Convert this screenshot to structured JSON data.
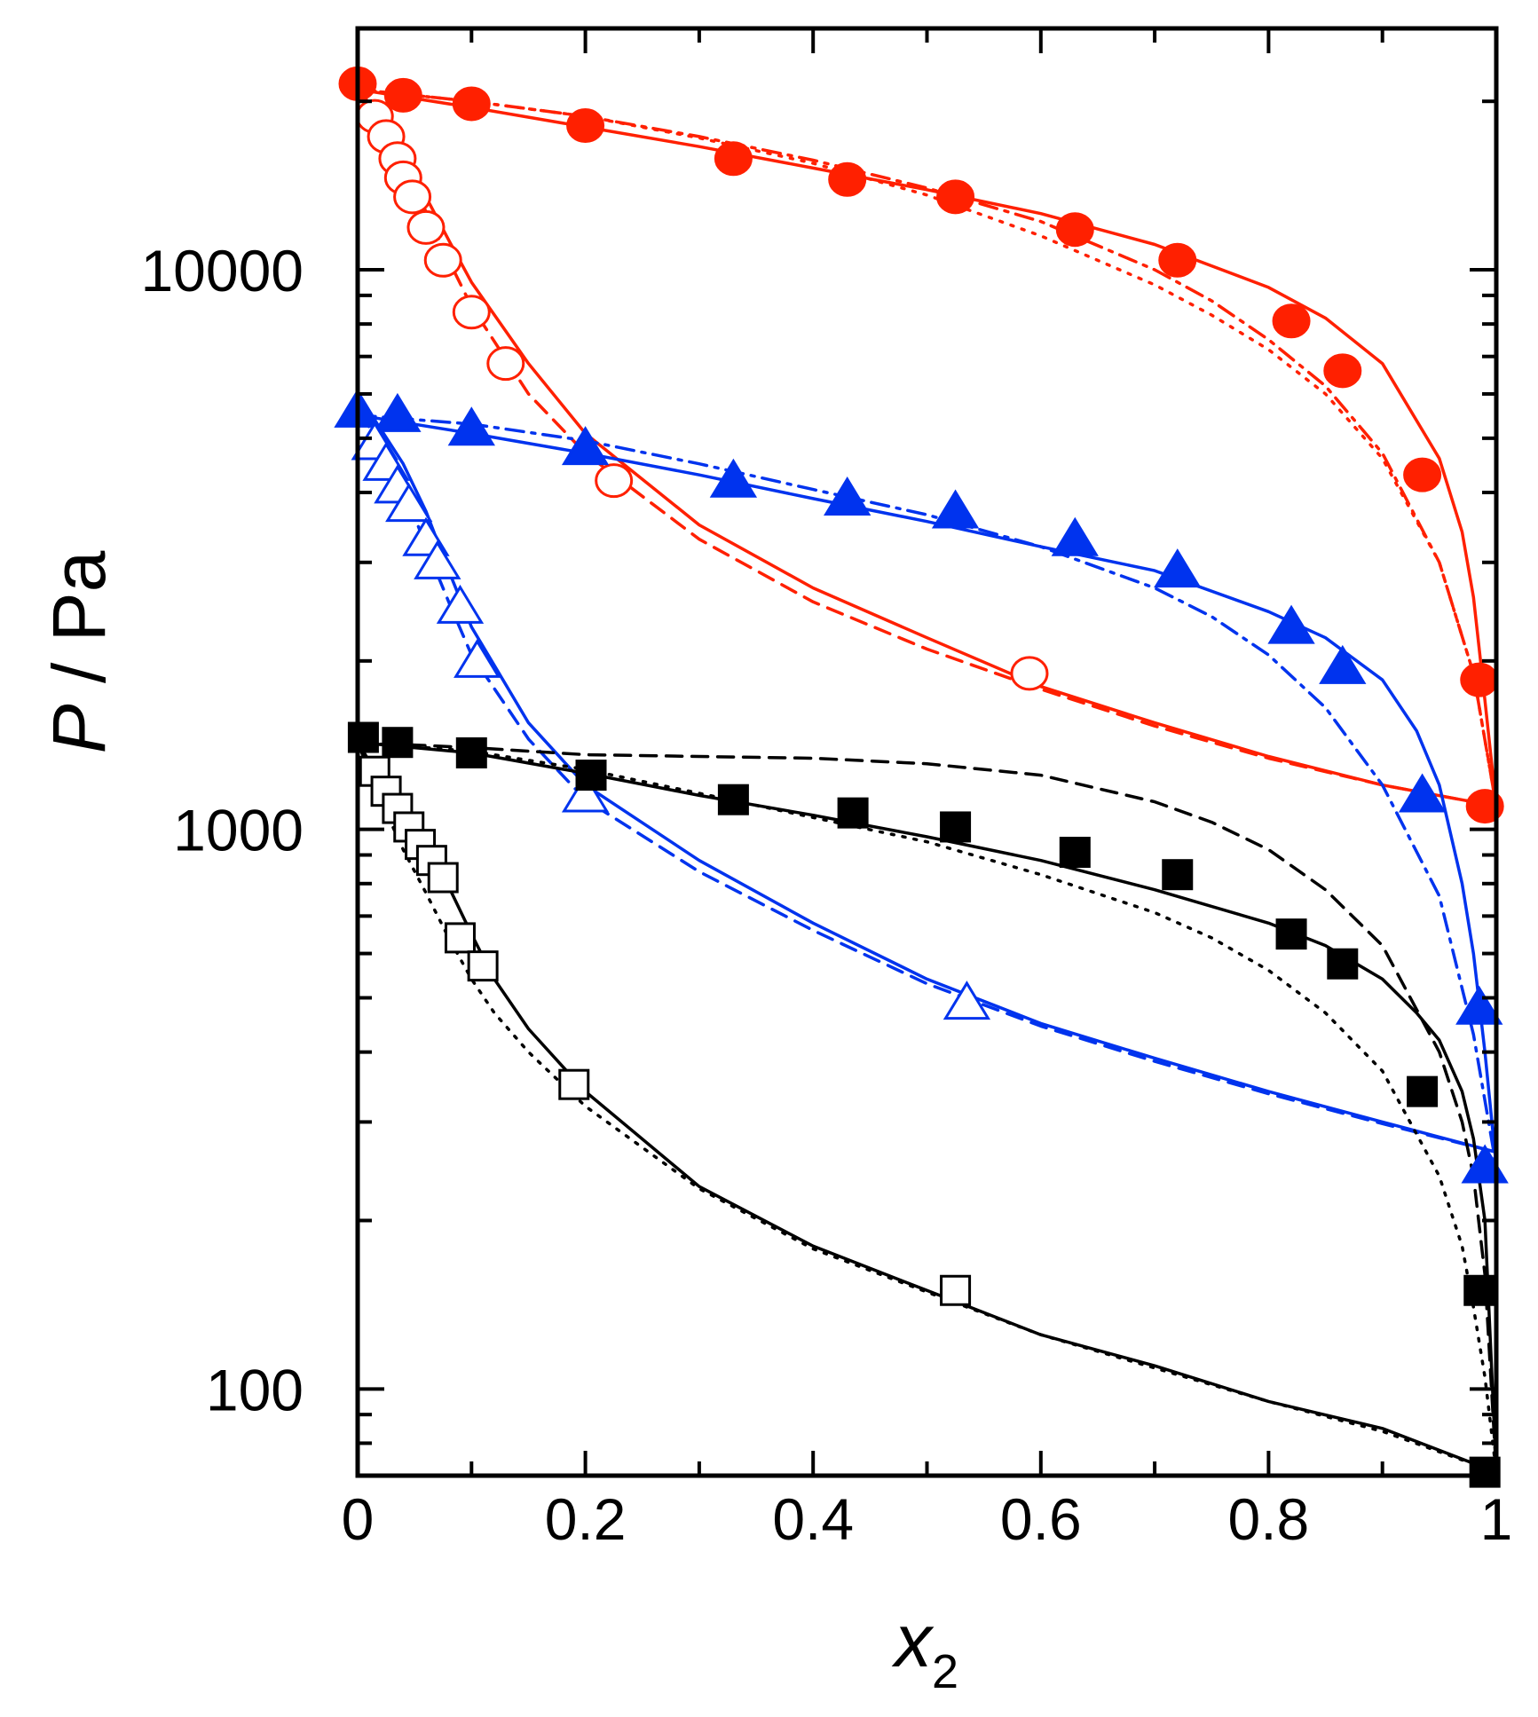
{
  "chart_data": {
    "type": "scatter",
    "xlabel": "x",
    "xlabel_subscript": "2",
    "ylabel_italic": "P",
    "ylabel_rest": " / Pa",
    "xlim": [
      0,
      1
    ],
    "ylim": [
      70,
      27000
    ],
    "yscale": "log",
    "x_ticks": [
      0,
      0.2,
      0.4,
      0.6,
      0.8,
      1
    ],
    "x_tick_labels": [
      "0",
      "0.2",
      "0.4",
      "0.6",
      "0.8",
      "1"
    ],
    "y_ticks": [
      100,
      1000,
      10000
    ],
    "y_tick_labels": [
      "100",
      "1000",
      "10000"
    ],
    "colors": {
      "red": "#ff2000",
      "blue": "#0033ee",
      "black": "#000000"
    },
    "series": [
      {
        "name": "red-bubble",
        "color": "red",
        "marker": "circle",
        "filled": true,
        "x": [
          0.0,
          0.04,
          0.1,
          0.2,
          0.33,
          0.43,
          0.525,
          0.63,
          0.72,
          0.82,
          0.865,
          0.935,
          0.985,
          0.99
        ],
        "y": [
          21500,
          20500,
          19800,
          18100,
          15800,
          14500,
          13500,
          11800,
          10400,
          8100,
          6600,
          4300,
          1850,
          1100
        ]
      },
      {
        "name": "red-dew",
        "color": "red",
        "marker": "circle",
        "filled": false,
        "x": [
          0.015,
          0.025,
          0.035,
          0.04,
          0.048,
          0.06,
          0.075,
          0.1,
          0.13,
          0.225,
          0.59
        ],
        "y": [
          18800,
          17300,
          15800,
          14600,
          13500,
          11900,
          10400,
          8400,
          6800,
          4200,
          1900
        ]
      },
      {
        "name": "blue-bubble",
        "color": "blue",
        "marker": "triangle",
        "filled": true,
        "x": [
          0.0,
          0.035,
          0.1,
          0.2,
          0.33,
          0.43,
          0.525,
          0.63,
          0.72,
          0.82,
          0.865,
          0.935,
          0.985,
          0.99
        ],
        "y": [
          5600,
          5500,
          5200,
          4800,
          4200,
          3900,
          3700,
          3300,
          2900,
          2300,
          1950,
          1150,
          480,
          250
        ]
      },
      {
        "name": "blue-dew",
        "color": "blue",
        "marker": "triangle",
        "filled": false,
        "x": [
          0.015,
          0.025,
          0.035,
          0.045,
          0.06,
          0.07,
          0.09,
          0.105,
          0.2,
          0.535
        ],
        "y": [
          4900,
          4500,
          4100,
          3800,
          3300,
          3000,
          2500,
          2000,
          1150,
          490
        ]
      },
      {
        "name": "black-bubble",
        "color": "black",
        "marker": "square",
        "filled": true,
        "x": [
          0.005,
          0.035,
          0.1,
          0.205,
          0.33,
          0.435,
          0.525,
          0.63,
          0.72,
          0.82,
          0.865,
          0.935,
          0.985,
          0.99
        ],
        "y": [
          1460,
          1430,
          1370,
          1250,
          1130,
          1070,
          1010,
          910,
          830,
          650,
          575,
          340,
          150,
          71
        ]
      },
      {
        "name": "black-dew",
        "color": "black",
        "marker": "square",
        "filled": false,
        "x": [
          0.015,
          0.025,
          0.035,
          0.045,
          0.055,
          0.065,
          0.075,
          0.09,
          0.11,
          0.19,
          0.525
        ],
        "y": [
          1270,
          1170,
          1090,
          1010,
          940,
          880,
          820,
          640,
          570,
          350,
          150
        ]
      }
    ],
    "curves": [
      {
        "name": "red-solid-upper",
        "color": "red",
        "dash": "solid",
        "x": [
          0,
          0.1,
          0.2,
          0.3,
          0.4,
          0.5,
          0.6,
          0.7,
          0.8,
          0.85,
          0.9,
          0.95,
          0.97,
          0.98,
          0.99,
          1.0
        ],
        "y": [
          21000,
          19500,
          18000,
          16600,
          15200,
          13900,
          12600,
          11100,
          9300,
          8200,
          6800,
          4600,
          3400,
          2600,
          1700,
          1100
        ]
      },
      {
        "name": "red-dashdot-upper",
        "color": "red",
        "dash": "dashdot",
        "x": [
          0,
          0.1,
          0.2,
          0.3,
          0.4,
          0.5,
          0.6,
          0.7,
          0.75,
          0.8,
          0.85,
          0.9,
          0.95,
          0.98,
          1.0
        ],
        "y": [
          21000,
          20000,
          18800,
          17300,
          15700,
          14000,
          12200,
          10000,
          8800,
          7500,
          6200,
          4700,
          3000,
          1900,
          1100
        ]
      },
      {
        "name": "red-dotted-upper",
        "color": "red",
        "dash": "dotted",
        "x": [
          0,
          0.1,
          0.2,
          0.3,
          0.4,
          0.5,
          0.6,
          0.7,
          0.75,
          0.8,
          0.85,
          0.9,
          0.95,
          0.98,
          1.0
        ],
        "y": [
          21000,
          20000,
          18800,
          17200,
          15500,
          13600,
          11500,
          9400,
          8300,
          7200,
          6000,
          4600,
          3000,
          1900,
          1100
        ]
      },
      {
        "name": "red-solid-lower",
        "color": "red",
        "dash": "solid",
        "x": [
          0,
          0.02,
          0.04,
          0.06,
          0.08,
          0.1,
          0.15,
          0.2,
          0.3,
          0.4,
          0.5,
          0.6,
          0.7,
          0.8,
          0.9,
          1.0
        ],
        "y": [
          21000,
          18800,
          16000,
          13500,
          11300,
          9500,
          6800,
          5100,
          3500,
          2700,
          2200,
          1800,
          1550,
          1350,
          1200,
          1100
        ]
      },
      {
        "name": "red-dashed-lower",
        "color": "red",
        "dash": "dashed",
        "x": [
          0,
          0.02,
          0.04,
          0.06,
          0.08,
          0.1,
          0.15,
          0.2,
          0.3,
          0.4,
          0.5,
          0.6,
          0.7,
          0.8,
          0.9,
          1.0
        ],
        "y": [
          21000,
          18500,
          15500,
          12700,
          10400,
          8600,
          6000,
          4700,
          3300,
          2550,
          2100,
          1780,
          1530,
          1340,
          1200,
          1100
        ]
      },
      {
        "name": "blue-solid-upper",
        "color": "blue",
        "dash": "solid",
        "x": [
          0,
          0.1,
          0.2,
          0.3,
          0.4,
          0.5,
          0.6,
          0.7,
          0.8,
          0.85,
          0.9,
          0.93,
          0.95,
          0.97,
          0.98,
          0.99,
          1.0
        ],
        "y": [
          5500,
          5100,
          4700,
          4300,
          3900,
          3550,
          3200,
          2900,
          2450,
          2200,
          1850,
          1500,
          1200,
          800,
          600,
          400,
          250
        ]
      },
      {
        "name": "blue-dashdot-upper",
        "color": "blue",
        "dash": "dashdot",
        "x": [
          0,
          0.1,
          0.2,
          0.3,
          0.4,
          0.5,
          0.6,
          0.7,
          0.75,
          0.8,
          0.85,
          0.9,
          0.95,
          0.98,
          1.0
        ],
        "y": [
          5500,
          5300,
          4950,
          4500,
          4050,
          3650,
          3200,
          2700,
          2400,
          2050,
          1650,
          1200,
          760,
          430,
          250
        ]
      },
      {
        "name": "blue-solid-lower",
        "color": "blue",
        "dash": "solid",
        "x": [
          0,
          0.02,
          0.04,
          0.06,
          0.08,
          0.1,
          0.15,
          0.2,
          0.3,
          0.4,
          0.5,
          0.6,
          0.7,
          0.8,
          0.9,
          1.0
        ],
        "y": [
          5500,
          5200,
          4500,
          3700,
          2900,
          2300,
          1550,
          1200,
          880,
          680,
          540,
          450,
          390,
          340,
          300,
          265
        ]
      },
      {
        "name": "blue-dashed-lower",
        "color": "blue",
        "dash": "dashed",
        "x": [
          0,
          0.02,
          0.04,
          0.06,
          0.08,
          0.1,
          0.15,
          0.2,
          0.3,
          0.4,
          0.5,
          0.6,
          0.7,
          0.8,
          0.9,
          1.0
        ],
        "y": [
          5500,
          5000,
          4100,
          3200,
          2550,
          2050,
          1450,
          1130,
          840,
          660,
          530,
          445,
          385,
          337,
          298,
          265
        ]
      },
      {
        "name": "black-solid-upper",
        "color": "black",
        "dash": "solid",
        "x": [
          0,
          0.1,
          0.2,
          0.3,
          0.4,
          0.5,
          0.6,
          0.7,
          0.8,
          0.85,
          0.9,
          0.93,
          0.95,
          0.97,
          0.98,
          0.99,
          1.0
        ],
        "y": [
          1430,
          1370,
          1260,
          1150,
          1060,
          970,
          880,
          780,
          680,
          620,
          540,
          470,
          420,
          340,
          280,
          200,
          71
        ]
      },
      {
        "name": "black-dashed-upper",
        "color": "black",
        "dash": "dashed",
        "x": [
          0,
          0.1,
          0.2,
          0.3,
          0.4,
          0.5,
          0.6,
          0.7,
          0.75,
          0.8,
          0.85,
          0.9,
          0.95,
          0.97,
          0.98,
          0.99,
          1.0
        ],
        "y": [
          1430,
          1400,
          1360,
          1350,
          1340,
          1310,
          1250,
          1120,
          1030,
          920,
          780,
          620,
          400,
          300,
          240,
          160,
          71
        ]
      },
      {
        "name": "black-dotted-upper",
        "color": "black",
        "dash": "dotted",
        "x": [
          0,
          0.1,
          0.2,
          0.3,
          0.4,
          0.5,
          0.6,
          0.7,
          0.75,
          0.8,
          0.85,
          0.9,
          0.95,
          0.97,
          0.98,
          0.99,
          1.0
        ],
        "y": [
          1430,
          1380,
          1280,
          1160,
          1050,
          950,
          830,
          710,
          640,
          560,
          470,
          370,
          240,
          180,
          140,
          105,
          71
        ]
      },
      {
        "name": "black-solid-lower",
        "color": "black",
        "dash": "solid",
        "x": [
          0,
          0.02,
          0.04,
          0.06,
          0.08,
          0.1,
          0.12,
          0.15,
          0.2,
          0.3,
          0.4,
          0.5,
          0.6,
          0.7,
          0.8,
          0.9,
          1.0
        ],
        "y": [
          1430,
          1230,
          1070,
          930,
          790,
          650,
          540,
          440,
          340,
          230,
          180,
          150,
          125,
          110,
          95,
          85,
          71
        ]
      },
      {
        "name": "black-dotted-lower",
        "color": "black",
        "dash": "dotted",
        "x": [
          0,
          0.02,
          0.04,
          0.06,
          0.08,
          0.1,
          0.12,
          0.15,
          0.2,
          0.3,
          0.4,
          0.5,
          0.6,
          0.7,
          0.8,
          0.9,
          1.0
        ],
        "y": [
          1430,
          1130,
          920,
          770,
          640,
          540,
          470,
          400,
          320,
          228,
          178,
          149,
          125,
          109,
          95,
          84,
          71
        ]
      }
    ]
  }
}
